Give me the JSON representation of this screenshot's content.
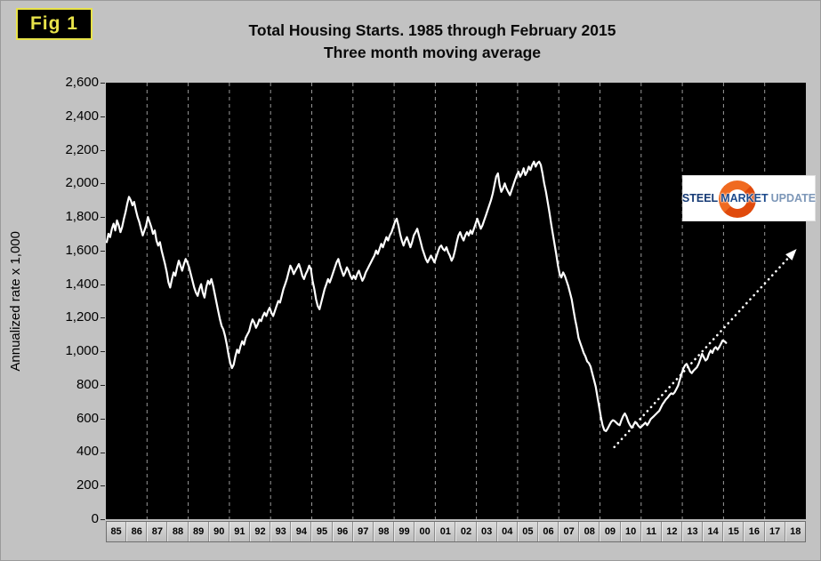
{
  "window": {
    "figure_label": "Fig 1"
  },
  "title": {
    "line1": "Total Housing Starts. 1985 through February 2015",
    "line2": "Three month moving average"
  },
  "y_axis": {
    "title": "Annualized rate x 1,000",
    "min": 0,
    "max": 2600,
    "step": 200
  },
  "x_axis": {
    "labels": [
      "85",
      "86",
      "87",
      "88",
      "89",
      "90",
      "91",
      "92",
      "93",
      "94",
      "95",
      "96",
      "97",
      "98",
      "99",
      "00",
      "01",
      "02",
      "03",
      "04",
      "05",
      "06",
      "07",
      "08",
      "09",
      "10",
      "11",
      "12",
      "13",
      "14",
      "15",
      "16",
      "17",
      "18"
    ]
  },
  "logo": {
    "steel": "STEEL",
    "market": "MARKET",
    "update": "UPDATE",
    "circle_color": "#e04a0c",
    "steel_color": "#153a75",
    "market_color": "#1c4a8c",
    "update_color": "#7d97b8"
  },
  "colors": {
    "page_bg": "#c2c2c2",
    "plot_bg": "#000000",
    "series_line": "#ffffff",
    "trend_line": "#ffffff",
    "gridline": "#999999",
    "badge_bg": "#000000",
    "badge_border": "#e8e34a",
    "badge_text": "#e8e34a"
  },
  "chart_data": {
    "type": "line",
    "title": "Total Housing Starts. 1985 through February 2015 — Three month moving average",
    "ylabel": "Annualized rate x 1,000",
    "x_range": [
      1985,
      2019
    ],
    "y_range": [
      0,
      2600
    ],
    "y_tick_step": 200,
    "gridlines": {
      "vertical_first_year": 1987,
      "vertical_every_years": 2,
      "vertical_last_year": 2018,
      "horizontal": false
    },
    "legend": "none",
    "series": [
      {
        "name": "Total housing starts, 3-month moving average (annualized rate x 1,000)",
        "start_year": 1985,
        "interval_months": 1,
        "values": [
          1650,
          1700,
          1680,
          1730,
          1760,
          1720,
          1780,
          1750,
          1710,
          1740,
          1790,
          1830,
          1880,
          1920,
          1900,
          1870,
          1890,
          1840,
          1800,
          1770,
          1730,
          1690,
          1720,
          1750,
          1800,
          1770,
          1740,
          1700,
          1720,
          1660,
          1630,
          1650,
          1600,
          1560,
          1520,
          1470,
          1410,
          1380,
          1430,
          1470,
          1450,
          1500,
          1540,
          1510,
          1480,
          1520,
          1550,
          1530,
          1500,
          1460,
          1420,
          1380,
          1350,
          1330,
          1370,
          1400,
          1350,
          1320,
          1380,
          1420,
          1400,
          1430,
          1390,
          1340,
          1290,
          1240,
          1190,
          1150,
          1130,
          1090,
          1040,
          980,
          930,
          900,
          920,
          970,
          1010,
          990,
          1030,
          1060,
          1040,
          1080,
          1100,
          1120,
          1160,
          1190,
          1170,
          1140,
          1160,
          1190,
          1180,
          1210,
          1230,
          1210,
          1240,
          1260,
          1230,
          1210,
          1240,
          1270,
          1300,
          1290,
          1330,
          1370,
          1400,
          1430,
          1470,
          1510,
          1490,
          1460,
          1480,
          1500,
          1520,
          1490,
          1450,
          1430,
          1460,
          1480,
          1510,
          1490,
          1420,
          1370,
          1310,
          1270,
          1250,
          1290,
          1330,
          1370,
          1400,
          1430,
          1410,
          1440,
          1470,
          1500,
          1530,
          1550,
          1510,
          1480,
          1450,
          1470,
          1500,
          1480,
          1450,
          1430,
          1450,
          1430,
          1460,
          1480,
          1450,
          1420,
          1440,
          1470,
          1490,
          1510,
          1530,
          1550,
          1570,
          1600,
          1580,
          1610,
          1640,
          1620,
          1650,
          1680,
          1660,
          1690,
          1710,
          1740,
          1770,
          1790,
          1750,
          1700,
          1660,
          1630,
          1660,
          1680,
          1650,
          1620,
          1650,
          1690,
          1710,
          1730,
          1690,
          1650,
          1610,
          1580,
          1550,
          1530,
          1550,
          1570,
          1550,
          1530,
          1560,
          1590,
          1620,
          1630,
          1610,
          1600,
          1620,
          1590,
          1570,
          1540,
          1560,
          1600,
          1650,
          1690,
          1710,
          1680,
          1660,
          1690,
          1710,
          1690,
          1720,
          1700,
          1730,
          1760,
          1790,
          1760,
          1730,
          1750,
          1780,
          1810,
          1840,
          1870,
          1900,
          1940,
          1990,
          2040,
          2060,
          1990,
          1950,
          1970,
          2000,
          1970,
          1950,
          1930,
          1960,
          1990,
          2020,
          2050,
          2070,
          2040,
          2060,
          2090,
          2050,
          2070,
          2100,
          2080,
          2110,
          2130,
          2100,
          2120,
          2130,
          2110,
          2060,
          2000,
          1950,
          1890,
          1830,
          1760,
          1700,
          1640,
          1580,
          1510,
          1460,
          1440,
          1470,
          1450,
          1420,
          1390,
          1350,
          1310,
          1250,
          1190,
          1140,
          1080,
          1050,
          1020,
          990,
          970,
          940,
          930,
          910,
          870,
          830,
          790,
          730,
          670,
          610,
          560,
          530,
          525,
          540,
          560,
          580,
          590,
          585,
          575,
          565,
          560,
          590,
          615,
          630,
          610,
          580,
          560,
          545,
          560,
          580,
          570,
          555,
          545,
          555,
          565,
          575,
          560,
          575,
          595,
          605,
          615,
          625,
          635,
          645,
          665,
          685,
          700,
          715,
          725,
          740,
          750,
          745,
          755,
          775,
          795,
          830,
          865,
          895,
          915,
          925,
          905,
          880,
          870,
          885,
          895,
          905,
          925,
          955,
          985,
          965,
          945,
          955,
          985,
          1005,
          990,
          1015,
          1025,
          1010,
          1025,
          1045,
          1065,
          1060,
          1050
        ]
      }
    ],
    "trend": {
      "name": "Dotted projection to 2018 (with arrowhead)",
      "style": "dotted-arrow",
      "x": [
        2009.7,
        2018.55
      ],
      "y": [
        430,
        1610
      ]
    }
  }
}
